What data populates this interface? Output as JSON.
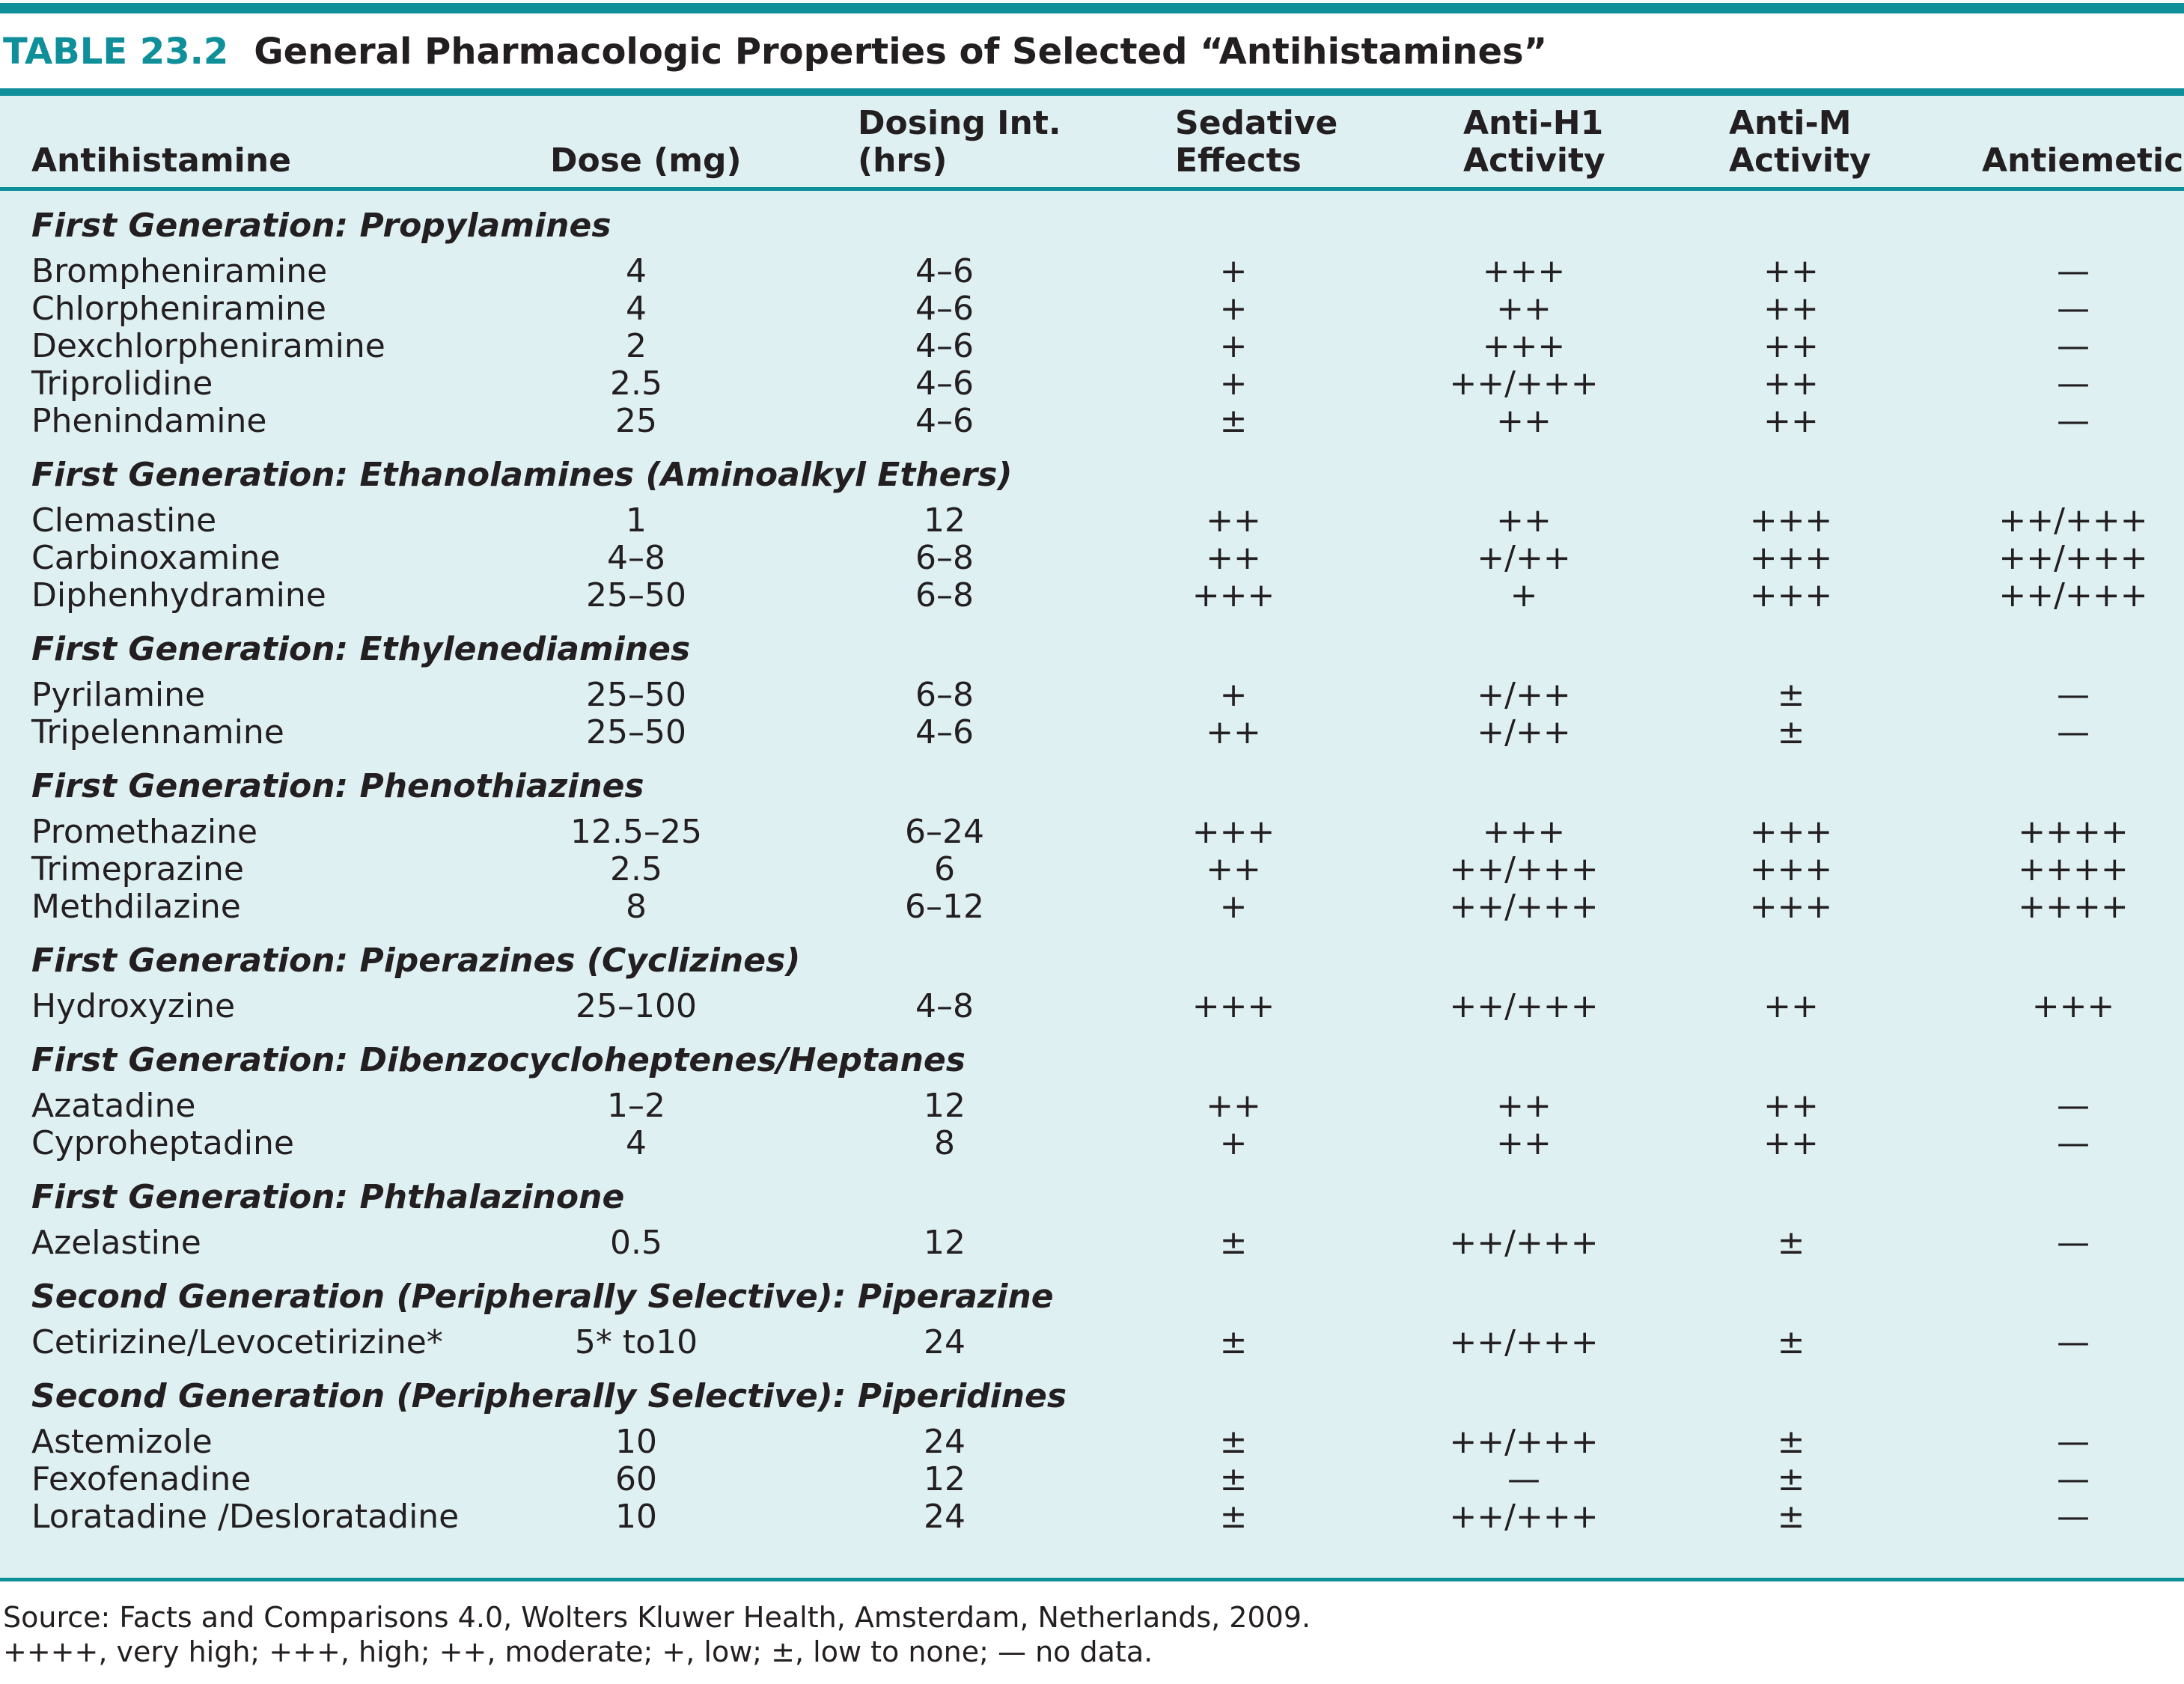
{
  "table": {
    "number": "TABLE 23.2",
    "title": "General Pharmacologic Properties of Selected “Antihistamines”",
    "columns": {
      "antihistamine": "Antihistamine",
      "dose": "Dose (mg)",
      "dosing_interval": {
        "line1": "Dosing Int.",
        "line2": "(hrs)"
      },
      "sedative": {
        "line1": "Sedative",
        "line2": "Effects"
      },
      "anti_h1": {
        "line1": "Anti-H1",
        "line2": "Activity"
      },
      "anti_m": {
        "line1": "Anti-M",
        "line2": "Activity"
      },
      "antiemetic": "Antiemetic"
    },
    "sections": [
      {
        "heading": "First Generation: Propylamines",
        "rows": [
          {
            "name": "Brompheniramine",
            "dose": "4",
            "interval": "4–6",
            "sedative": "+",
            "anti_h1": "+++",
            "anti_m": "++",
            "antiemetic": "—"
          },
          {
            "name": "Chlorpheniramine",
            "dose": "4",
            "interval": "4–6",
            "sedative": "+",
            "anti_h1": "++",
            "anti_m": "++",
            "antiemetic": "—"
          },
          {
            "name": "Dexchlorpheniramine",
            "dose": "2",
            "interval": "4–6",
            "sedative": "+",
            "anti_h1": "+++",
            "anti_m": "++",
            "antiemetic": "—"
          },
          {
            "name": "Triprolidine",
            "dose": "2.5",
            "interval": "4–6",
            "sedative": "+",
            "anti_h1": "++/+++",
            "anti_m": "++",
            "antiemetic": "—"
          },
          {
            "name": "Phenindamine",
            "dose": "25",
            "interval": "4–6",
            "sedative": "±",
            "anti_h1": "++",
            "anti_m": "++",
            "antiemetic": "—"
          }
        ]
      },
      {
        "heading": "First Generation: Ethanolamines (Aminoalkyl Ethers)",
        "rows": [
          {
            "name": "Clemastine",
            "dose": "1",
            "interval": "12",
            "sedative": "++",
            "anti_h1": "++",
            "anti_m": "+++",
            "antiemetic": "++/+++"
          },
          {
            "name": "Carbinoxamine",
            "dose": "4–8",
            "interval": "6–8",
            "sedative": "++",
            "anti_h1": "+/++",
            "anti_m": "+++",
            "antiemetic": "++/+++"
          },
          {
            "name": "Diphenhydramine",
            "dose": "25–50",
            "interval": "6–8",
            "sedative": "+++",
            "anti_h1": "+",
            "anti_m": "+++",
            "antiemetic": "++/+++"
          }
        ]
      },
      {
        "heading": "First Generation: Ethylenediamines",
        "rows": [
          {
            "name": "Pyrilamine",
            "dose": "25–50",
            "interval": "6–8",
            "sedative": "+",
            "anti_h1": "+/++",
            "anti_m": "±",
            "antiemetic": "—"
          },
          {
            "name": "Tripelennamine",
            "dose": "25–50",
            "interval": "4–6",
            "sedative": "++",
            "anti_h1": "+/++",
            "anti_m": "±",
            "antiemetic": "—"
          }
        ]
      },
      {
        "heading": "First Generation: Phenothiazines",
        "rows": [
          {
            "name": "Promethazine",
            "dose": "12.5–25",
            "interval": "6–24",
            "sedative": "+++",
            "anti_h1": "+++",
            "anti_m": "+++",
            "antiemetic": "++++"
          },
          {
            "name": "Trimeprazine",
            "dose": "2.5",
            "interval": "6",
            "sedative": "++",
            "anti_h1": "++/+++",
            "anti_m": "+++",
            "antiemetic": "++++"
          },
          {
            "name": "Methdilazine",
            "dose": "8",
            "interval": "6–12",
            "sedative": "+",
            "anti_h1": "++/+++",
            "anti_m": "+++",
            "antiemetic": "++++"
          }
        ]
      },
      {
        "heading": "First Generation: Piperazines (Cyclizines)",
        "rows": [
          {
            "name": "Hydroxyzine",
            "dose": "25–100",
            "interval": "4–8",
            "sedative": "+++",
            "anti_h1": "++/+++",
            "anti_m": "++",
            "antiemetic": "+++"
          }
        ]
      },
      {
        "heading": "First Generation: Dibenzocycloheptenes/Heptanes",
        "rows": [
          {
            "name": "Azatadine",
            "dose": "1–2",
            "interval": "12",
            "sedative": "++",
            "anti_h1": "++",
            "anti_m": "++",
            "antiemetic": "—"
          },
          {
            "name": "Cyproheptadine",
            "dose": "4",
            "interval": "8",
            "sedative": "+",
            "anti_h1": "++",
            "anti_m": "++",
            "antiemetic": "—"
          }
        ]
      },
      {
        "heading": "First Generation: Phthalazinone",
        "rows": [
          {
            "name": "Azelastine",
            "dose": "0.5",
            "interval": "12",
            "sedative": "±",
            "anti_h1": "++/+++",
            "anti_m": "±",
            "antiemetic": "—"
          }
        ]
      },
      {
        "heading": "Second Generation (Peripherally Selective): Piperazine",
        "rows": [
          {
            "name": "Cetirizine/Levocetirizine*",
            "dose": "5* to10",
            "interval": "24",
            "sedative": "±",
            "anti_h1": "++/+++",
            "anti_m": "±",
            "antiemetic": "—"
          }
        ]
      },
      {
        "heading": "Second Generation (Peripherally Selective): Piperidines",
        "rows": [
          {
            "name": "Astemizole",
            "dose": "10",
            "interval": "24",
            "sedative": "±",
            "anti_h1": "++/+++",
            "anti_m": "±",
            "antiemetic": "—"
          },
          {
            "name": "Fexofenadine",
            "dose": "60",
            "interval": "12",
            "sedative": "±",
            "anti_h1": "—",
            "anti_m": "±",
            "antiemetic": "—"
          },
          {
            "name": "Loratadine /Desloratadine",
            "dose": "10",
            "interval": "24",
            "sedative": "±",
            "anti_h1": "++/+++",
            "anti_m": "±",
            "antiemetic": "—"
          }
        ]
      }
    ]
  },
  "footer": {
    "source": "Source: Facts and Comparisons 4.0, Wolters Kluwer Health, Amsterdam, Netherlands, 2009.",
    "legend": "++++, very high; +++, high; ++, moderate; +, low; ±, low to none; — no data."
  },
  "colors": {
    "accent": "#0f8f9a",
    "table_background": "#dff0f3",
    "text": "#231f20"
  }
}
